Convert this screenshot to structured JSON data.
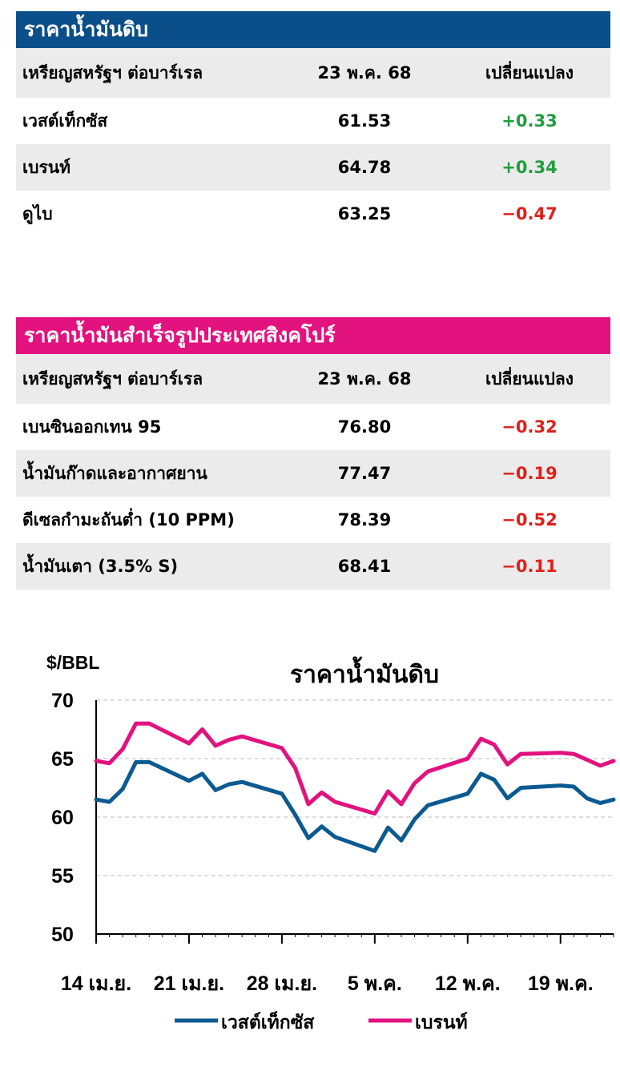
{
  "crude": {
    "title": "ราคาน้ำมันดิบ",
    "header": {
      "col1": "เหรียญสหรัฐฯ ต่อบาร์เรล",
      "col2": "23 พ.ค. 68",
      "col3": "เปลี่ยนแปลง"
    },
    "rows": [
      {
        "name": "เวสต์เท็กซัส",
        "price": "61.53",
        "change": "+0.33",
        "dir": "up"
      },
      {
        "name": "เบรนท์",
        "price": "64.78",
        "change": "+0.34",
        "dir": "up"
      },
      {
        "name": "ดูไบ",
        "price": "63.25",
        "change": "−0.47",
        "dir": "down"
      }
    ]
  },
  "refined": {
    "title": "ราคาน้ำมันสำเร็จรูปประเทศสิงคโปร์",
    "header": {
      "col1": "เหรียญสหรัฐฯ ต่อบาร์เรล",
      "col2": "23 พ.ค. 68",
      "col3": "เปลี่ยนแปลง"
    },
    "rows": [
      {
        "name": "เบนซินออกเทน 95",
        "price": "76.80",
        "change": "−0.32",
        "dir": "down"
      },
      {
        "name": "น้ำมันก๊าดและอากาศยาน",
        "price": "77.47",
        "change": "−0.19",
        "dir": "down"
      },
      {
        "name": "ดีเซลกำมะถันต่ำ (10 PPM)",
        "price": "78.39",
        "change": "−0.52",
        "dir": "down"
      },
      {
        "name": "น้ำมันเตา (3.5% S)",
        "price": "68.41",
        "change": "−0.11",
        "dir": "down"
      }
    ]
  },
  "colors": {
    "wti": "#0b5a91",
    "brent": "#e2127f",
    "up": "#1f9e3f",
    "down": "#e0201a"
  },
  "chart_data": {
    "type": "line",
    "title": "ราคาน้ำมันดิบ",
    "ylabel": "$/BBL",
    "ylim": [
      50,
      70
    ],
    "yticks": [
      70,
      65,
      60,
      55,
      50
    ],
    "grid": true,
    "legend_position": "bottom",
    "x_tick_labels": [
      "14 เม.ย.",
      "21 เม.ย.",
      "28 เม.ย.",
      "5 พ.ค.",
      "12 พ.ค.",
      "19 พ.ค."
    ],
    "x_tick_days": [
      0,
      7,
      14,
      21,
      28,
      35
    ],
    "x_range_days": [
      0,
      39
    ],
    "series": [
      {
        "name": "เวสต์เท็กซัส",
        "color": "#0b5a91",
        "x": [
          0,
          1,
          2,
          3,
          4,
          7,
          8,
          9,
          10,
          11,
          14,
          15,
          16,
          17,
          18,
          21,
          22,
          23,
          24,
          25,
          28,
          29,
          30,
          31,
          32,
          35,
          36,
          37,
          38,
          39
        ],
        "y": [
          61.5,
          61.3,
          62.4,
          64.7,
          64.7,
          63.1,
          63.7,
          62.3,
          62.8,
          63.0,
          62.0,
          60.2,
          58.2,
          59.2,
          58.3,
          57.1,
          59.1,
          58.0,
          59.8,
          61.0,
          62.0,
          63.7,
          63.2,
          61.6,
          62.5,
          62.7,
          62.6,
          61.6,
          61.2,
          61.5
        ]
      },
      {
        "name": "เบรนท์",
        "color": "#e2127f",
        "x": [
          0,
          1,
          2,
          3,
          4,
          7,
          8,
          9,
          10,
          11,
          14,
          15,
          16,
          17,
          18,
          21,
          22,
          23,
          24,
          25,
          28,
          29,
          30,
          31,
          32,
          35,
          36,
          37,
          38,
          39
        ],
        "y": [
          64.8,
          64.6,
          65.8,
          68.0,
          68.0,
          66.3,
          67.5,
          66.1,
          66.6,
          66.9,
          65.9,
          64.2,
          61.1,
          62.1,
          61.3,
          60.3,
          62.2,
          61.1,
          62.9,
          63.9,
          65.0,
          66.7,
          66.2,
          64.5,
          65.4,
          65.5,
          65.4,
          64.9,
          64.4,
          64.8
        ]
      }
    ]
  }
}
